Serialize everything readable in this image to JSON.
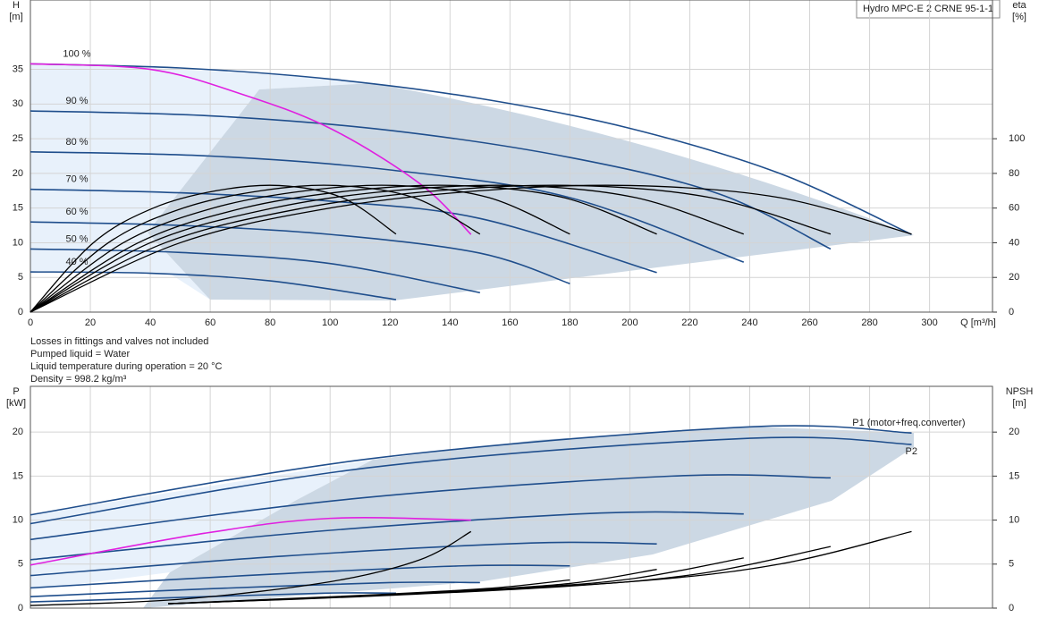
{
  "notes": [
    "Losses in fittings and valves not included",
    "Pumped liquid = Water",
    "Liquid temperature during operation = 20 °C",
    "Density = 998.2 kg/m³"
  ],
  "chart_data": [
    {
      "type": "line",
      "title": "Hydro MPC-E 2 CRNE 95-1-1",
      "xlabel": "Q [m³/h]",
      "ylabel": [
        "H",
        "[m]"
      ],
      "y2label": [
        "eta",
        "[%]"
      ],
      "xlim": [
        0,
        321
      ],
      "xticks": [
        0,
        20,
        40,
        60,
        80,
        100,
        120,
        140,
        160,
        180,
        200,
        220,
        240,
        260,
        280,
        300
      ],
      "ylim": [
        0,
        45
      ],
      "yticks": [
        0,
        5,
        10,
        15,
        20,
        25,
        30,
        35
      ],
      "y2lim": [
        0,
        180
      ],
      "y2ticks": [
        0,
        20,
        40,
        60,
        80,
        100
      ],
      "grid": true,
      "series": [
        {
          "name": "100 %",
          "color": "#1f4e8c",
          "x": [
            0,
            50,
            100,
            150,
            200,
            250,
            294
          ],
          "values": [
            35.8,
            35.2,
            33.6,
            30.8,
            26.5,
            20,
            11.2
          ]
        },
        {
          "name": "90 %",
          "color": "#1f4e8c",
          "x": [
            0,
            60,
            120,
            180,
            230,
            267
          ],
          "values": [
            29,
            28.3,
            26.2,
            22.3,
            17,
            9.1
          ]
        },
        {
          "name": "80 %",
          "color": "#1f4e8c",
          "x": [
            0,
            60,
            120,
            180,
            238
          ],
          "values": [
            23.1,
            22.5,
            20.5,
            16.5,
            7.2
          ]
        },
        {
          "name": "70 %",
          "color": "#1f4e8c",
          "x": [
            0,
            50,
            100,
            150,
            209
          ],
          "values": [
            17.7,
            17.2,
            16,
            13.5,
            5.7
          ]
        },
        {
          "name": "60 %",
          "color": "#1f4e8c",
          "x": [
            0,
            50,
            100,
            150,
            180
          ],
          "values": [
            13,
            12.5,
            11.2,
            8.5,
            4.1
          ]
        },
        {
          "name": "50 %",
          "color": "#1f4e8c",
          "x": [
            0,
            50,
            100,
            150
          ],
          "values": [
            9.1,
            8.6,
            7,
            2.8
          ]
        },
        {
          "name": "40 %",
          "color": "#1f4e8c",
          "x": [
            0,
            40,
            80,
            122
          ],
          "values": [
            5.8,
            5.6,
            4.5,
            1.8
          ]
        },
        {
          "color": "#e020e0",
          "x": [
            0,
            40,
            70,
            100,
            130,
            147
          ],
          "values": [
            35.8,
            35,
            31.5,
            26.5,
            18.5,
            11.2
          ]
        },
        {
          "color": "#000000",
          "axis": "y2",
          "x": [
            0,
            50,
            100,
            150,
            200,
            250,
            294
          ],
          "values": [
            0,
            40,
            60,
            70,
            73,
            66,
            45
          ]
        },
        {
          "color": "#000000",
          "axis": "y2",
          "x": [
            0,
            45,
            91,
            136,
            182,
            227,
            267
          ],
          "values": [
            0,
            40,
            60,
            70,
            73,
            66,
            45
          ]
        },
        {
          "color": "#000000",
          "axis": "y2",
          "x": [
            0,
            40,
            81,
            121,
            162,
            202,
            238
          ],
          "values": [
            0,
            40,
            60,
            70,
            73,
            66,
            45
          ]
        },
        {
          "color": "#000000",
          "axis": "y2",
          "x": [
            0,
            36,
            71,
            107,
            142,
            178,
            209
          ],
          "values": [
            0,
            40,
            60,
            70,
            73,
            66,
            45
          ]
        },
        {
          "color": "#000000",
          "axis": "y2",
          "x": [
            0,
            31,
            61,
            92,
            122,
            153,
            180
          ],
          "values": [
            0,
            40,
            60,
            70,
            73,
            66,
            45
          ]
        },
        {
          "color": "#000000",
          "axis": "y2",
          "x": [
            0,
            26,
            51,
            77,
            102,
            128,
            150
          ],
          "values": [
            0,
            40,
            60,
            70,
            73,
            66,
            45
          ]
        },
        {
          "color": "#000000",
          "axis": "y2",
          "x": [
            0,
            21,
            41,
            62,
            83,
            104,
            122
          ],
          "values": [
            0,
            40,
            60,
            70,
            73,
            66,
            45
          ]
        }
      ]
    },
    {
      "type": "line",
      "ylabel": [
        "P",
        "[kW]"
      ],
      "y2label": [
        "NPSH",
        "[m]"
      ],
      "xlim": [
        0,
        321
      ],
      "ylim": [
        0,
        25.2
      ],
      "yticks": [
        0,
        5,
        10,
        15,
        20
      ],
      "y2lim": [
        0,
        25.2
      ],
      "y2ticks": [
        0,
        5,
        10,
        15,
        20
      ],
      "grid": true,
      "series": [
        {
          "name": "P1 (motor+freq.converter)",
          "color": "#1f4e8c",
          "x": [
            0,
            114,
            240,
            294
          ],
          "values": [
            10.6,
            17,
            20.6,
            19.9
          ]
        },
        {
          "name": "P2",
          "color": "#1f4e8c",
          "x": [
            0,
            114,
            240,
            294
          ],
          "values": [
            9.6,
            16,
            19.3,
            18.6
          ]
        },
        {
          "color": "#1f4e8c",
          "x": [
            0,
            107,
            214,
            267
          ],
          "values": [
            7.8,
            12.4,
            15,
            14.8
          ]
        },
        {
          "color": "#1f4e8c",
          "x": [
            0,
            95,
            190,
            238
          ],
          "values": [
            5.5,
            8.7,
            10.8,
            10.7
          ]
        },
        {
          "color": "#1f4e8c",
          "x": [
            0,
            84,
            167,
            209
          ],
          "values": [
            3.7,
            5.9,
            7.4,
            7.3
          ]
        },
        {
          "color": "#1f4e8c",
          "x": [
            0,
            72,
            144,
            180
          ],
          "values": [
            2.3,
            3.7,
            4.8,
            4.8
          ]
        },
        {
          "color": "#1f4e8c",
          "x": [
            0,
            60,
            120,
            150
          ],
          "values": [
            1.3,
            2.2,
            2.9,
            2.9
          ]
        },
        {
          "color": "#1f4e8c",
          "x": [
            0,
            49,
            98,
            122
          ],
          "values": [
            0.7,
            1.2,
            1.7,
            1.7
          ]
        },
        {
          "color": "#e020e0",
          "x": [
            0,
            58,
            100,
            147
          ],
          "values": [
            4.9,
            8.5,
            10.2,
            10
          ]
        },
        {
          "color": "#000000",
          "axis": "y2",
          "x": [
            46,
            120,
            200,
            250,
            294
          ],
          "values": [
            0.5,
            1.5,
            3,
            5,
            8.7
          ]
        },
        {
          "color": "#000000",
          "axis": "y2",
          "x": [
            46,
            110,
            180,
            225,
            267
          ],
          "values": [
            0.5,
            1.3,
            2.5,
            4,
            7
          ]
        },
        {
          "color": "#000000",
          "axis": "y2",
          "x": [
            46,
            100,
            160,
            200,
            238
          ],
          "values": [
            0.5,
            1.2,
            2.2,
            3.3,
            5.7
          ]
        },
        {
          "color": "#000000",
          "axis": "y2",
          "x": [
            46,
            90,
            140,
            180,
            209
          ],
          "values": [
            0.5,
            1.1,
            1.9,
            2.8,
            4.4
          ]
        },
        {
          "color": "#000000",
          "axis": "y2",
          "x": [
            46,
            80,
            120,
            155,
            180
          ],
          "values": [
            0.5,
            1,
            1.6,
            2.3,
            3.2
          ]
        },
        {
          "color": "#000000",
          "axis": "y2",
          "x": [
            0,
            50,
            100,
            130,
            147
          ],
          "values": [
            0.3,
            1,
            3,
            5.5,
            8.7
          ]
        }
      ]
    }
  ]
}
